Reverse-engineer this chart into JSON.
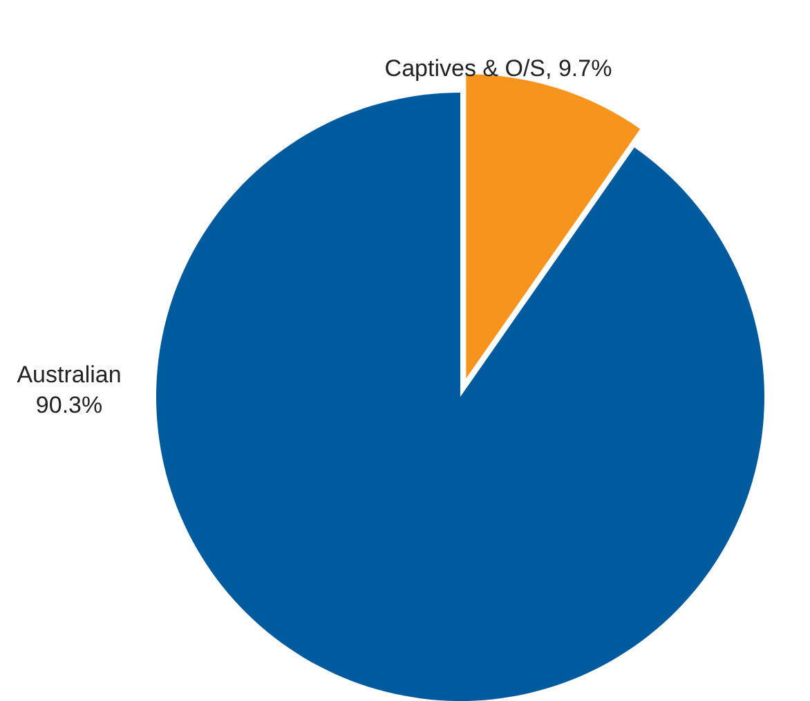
{
  "chart_data": {
    "type": "pie",
    "categories": [
      "Captives & O/S",
      "Australian"
    ],
    "values": [
      9.7,
      90.3
    ],
    "colors": [
      "#f7941d",
      "#005a9e"
    ],
    "value_labels": [
      "9.7%",
      "90.3%"
    ],
    "legend": false
  }
}
